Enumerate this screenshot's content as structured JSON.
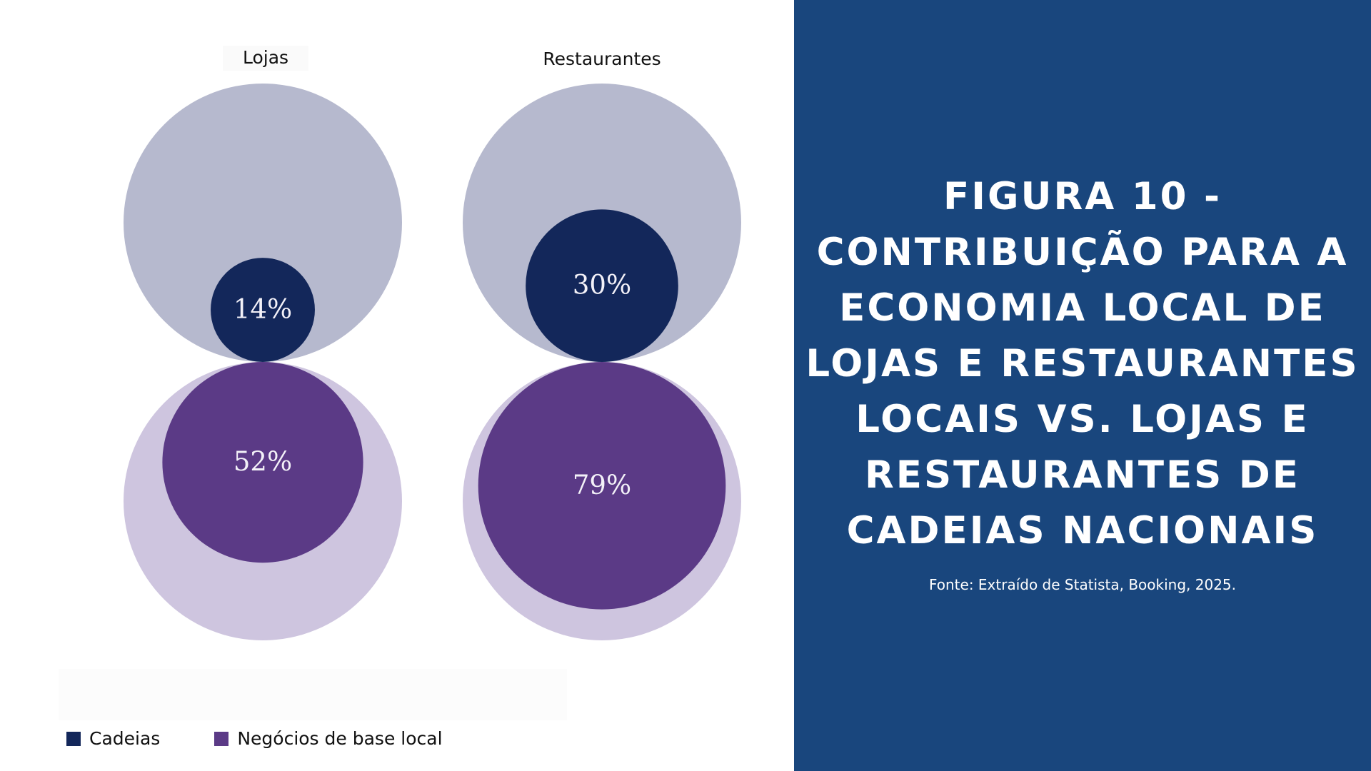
{
  "chart_data": {
    "type": "bubble",
    "panels": [
      {
        "title": "Lojas",
        "values": [
          {
            "series": "Cadeias",
            "value": 14,
            "label": "14%"
          },
          {
            "series": "Negócios de base local",
            "value": 52,
            "label": "52%"
          }
        ]
      },
      {
        "title": "Restaurantes",
        "values": [
          {
            "series": "Cadeias",
            "value": 30,
            "label": "30%"
          },
          {
            "series": "Negócios de base local",
            "value": 79,
            "label": "79%"
          }
        ]
      }
    ],
    "legend": [
      {
        "name": "Cadeias",
        "color": "#13275a"
      },
      {
        "name": "Negócios de base local",
        "color": "#5b3a86"
      }
    ],
    "reference_total": 100
  },
  "colors": {
    "chains": "#13275a",
    "chains_reference": "#b6b9ce",
    "local": "#5b3a86",
    "local_reference": "#cec5df",
    "side_panel": "#19467d"
  },
  "figure": {
    "title": "FIGURA 10 - CONTRIBUIÇÃO PARA A ECONOMIA LOCAL DE LOJAS E RESTAURANTES LOCAIS VS. LOJAS E RESTAURANTES DE CADEIAS NACIONAIS",
    "source": "Fonte: Extraído de Statista, Booking, 2025."
  }
}
